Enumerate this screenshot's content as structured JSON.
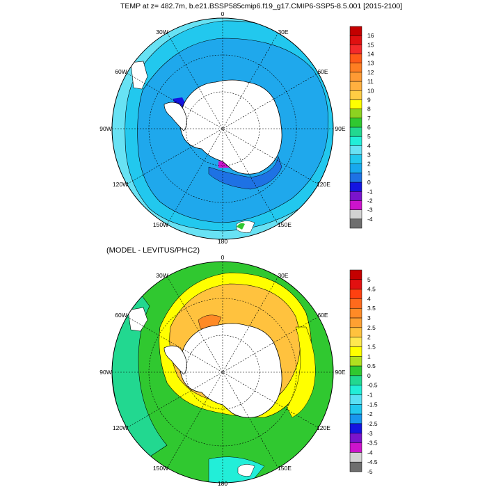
{
  "title": "TEMP at z= 482.7m, b.e21.BSSP585cmip6.f19_g17.CMIP6-SSP5-8.5.001 [2015-2100]",
  "diff_title": "(MODEL - LEVITUS/PHC2)",
  "top_map": {
    "lon_labels": [
      "0",
      "30E",
      "60E",
      "90E",
      "120E",
      "150E",
      "180",
      "150W",
      "120W",
      "90W",
      "60W",
      "30W"
    ],
    "colorbar": {
      "labels": [
        "16",
        "15",
        "14",
        "13",
        "12",
        "11",
        "10",
        "9",
        "8",
        "7",
        "6",
        "5",
        "4",
        "3",
        "2",
        "1",
        "0",
        "-1",
        "-2",
        "-3",
        "-4"
      ],
      "colors": [
        "#c40000",
        "#e01010",
        "#f42a2a",
        "#ff5a18",
        "#ff7e22",
        "#ff9a34",
        "#ffb040",
        "#ffcc44",
        "#ffff00",
        "#8cd220",
        "#30c830",
        "#22d890",
        "#22eed8",
        "#68e2f4",
        "#22c8ee",
        "#18a8ee",
        "#1e72e4",
        "#1414e0",
        "#7a14cc",
        "#cc14cc",
        "#d2d2d2",
        "#6e6e6e"
      ]
    }
  },
  "bottom_map": {
    "lon_labels": [
      "0",
      "30E",
      "60E",
      "90E",
      "120E",
      "150E",
      "180",
      "150W",
      "120W",
      "90W",
      "60W",
      "30W"
    ],
    "colorbar": {
      "labels": [
        "5",
        "4.5",
        "4",
        "3.5",
        "3",
        "2.5",
        "2",
        "1.5",
        "1",
        "0.5",
        "0",
        "-0.5",
        "-1",
        "-1.5",
        "-2",
        "-2.5",
        "-3",
        "-3.5",
        "-4",
        "-4.5",
        "-5"
      ],
      "colors": [
        "#c40000",
        "#e21010",
        "#ff4010",
        "#ff6a1c",
        "#ff8a26",
        "#ffa032",
        "#ffc23e",
        "#ffe850",
        "#ffff00",
        "#b0e020",
        "#30c830",
        "#22d890",
        "#22eed8",
        "#5ae0f4",
        "#22c8ee",
        "#1896ee",
        "#1414e0",
        "#7a14cc",
        "#cc14cc",
        "#d2d2d2",
        "#6e6e6e"
      ]
    }
  }
}
